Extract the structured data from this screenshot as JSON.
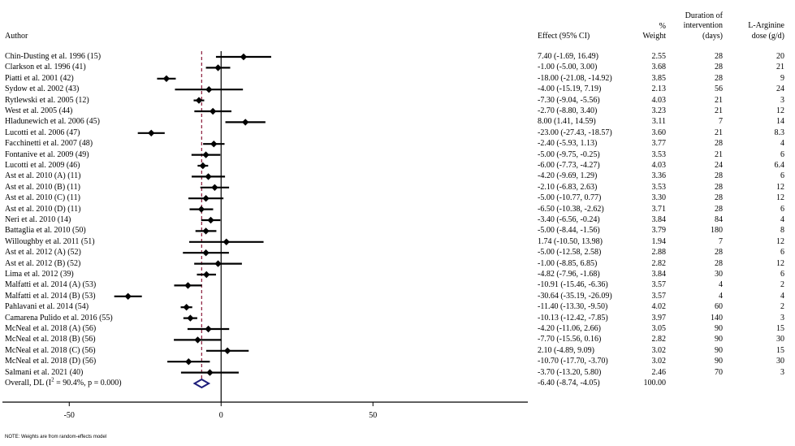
{
  "chart_data": {
    "type": "forest",
    "columns": {
      "author": "Author",
      "effect": "Effect (95% CI)",
      "weight_top": "%",
      "weight_bottom": "Weight",
      "duration_l1": "Duration of",
      "duration_l2": "intervention",
      "duration_l3": "(days)",
      "dose_l1": "L-Arginine",
      "dose_l2": "dose (g/d)"
    },
    "studies": [
      {
        "author": "Chin-Dusting et al. 1996 (15)",
        "effect": 7.4,
        "lower": -1.69,
        "upper": 16.49,
        "ci_text": "7.40 (-1.69, 16.49)",
        "weight": "2.55",
        "duration": "28",
        "dose": "20"
      },
      {
        "author": "Clarkson et al. 1996 (41)",
        "effect": -1.0,
        "lower": -5.0,
        "upper": 3.0,
        "ci_text": "-1.00 (-5.00, 3.00)",
        "weight": "3.68",
        "duration": "28",
        "dose": "21"
      },
      {
        "author": "Piatti et al. 2001 (42)",
        "effect": -18.0,
        "lower": -21.08,
        "upper": -14.92,
        "ci_text": "-18.00 (-21.08, -14.92)",
        "weight": "3.85",
        "duration": "28",
        "dose": "9"
      },
      {
        "author": "Sydow et al. 2002 (43)",
        "effect": -4.0,
        "lower": -15.19,
        "upper": 7.19,
        "ci_text": "-4.00 (-15.19, 7.19)",
        "weight": "2.13",
        "duration": "56",
        "dose": "24"
      },
      {
        "author": "Rytlewski et al. 2005 (12)",
        "effect": -7.3,
        "lower": -9.04,
        "upper": -5.56,
        "ci_text": "-7.30 (-9.04, -5.56)",
        "weight": "4.03",
        "duration": "21",
        "dose": "3"
      },
      {
        "author": "West et al. 2005 (44)",
        "effect": -2.7,
        "lower": -8.8,
        "upper": 3.4,
        "ci_text": "-2.70 (-8.80, 3.40)",
        "weight": "3.23",
        "duration": "21",
        "dose": "12"
      },
      {
        "author": "Hladunewich et al. 2006 (45)",
        "effect": 8.0,
        "lower": 1.41,
        "upper": 14.59,
        "ci_text": "8.00 (1.41, 14.59)",
        "weight": "3.11",
        "duration": "7",
        "dose": "14"
      },
      {
        "author": "Lucotti et al. 2006 (47)",
        "effect": -23.0,
        "lower": -27.43,
        "upper": -18.57,
        "ci_text": "-23.00 (-27.43, -18.57)",
        "weight": "3.60",
        "duration": "21",
        "dose": "8.3"
      },
      {
        "author": "Facchinetti et al. 2007 (48)",
        "effect": -2.4,
        "lower": -5.93,
        "upper": 1.13,
        "ci_text": "-2.40 (-5.93, 1.13)",
        "weight": "3.77",
        "duration": "28",
        "dose": "4"
      },
      {
        "author": "Fontanive et al. 2009 (49)",
        "effect": -5.0,
        "lower": -9.75,
        "upper": -0.25,
        "ci_text": "-5.00 (-9.75, -0.25)",
        "weight": "3.53",
        "duration": "21",
        "dose": "6"
      },
      {
        "author": "Lucotti et al. 2009 (46)",
        "effect": -6.0,
        "lower": -7.73,
        "upper": -4.27,
        "ci_text": "-6.00 (-7.73, -4.27)",
        "weight": "4.03",
        "duration": "24",
        "dose": "6.4"
      },
      {
        "author": "Ast et al. 2010 (A) (11)",
        "effect": -4.2,
        "lower": -9.69,
        "upper": 1.29,
        "ci_text": "-4.20 (-9.69, 1.29)",
        "weight": "3.36",
        "duration": "28",
        "dose": "6"
      },
      {
        "author": "Ast et al. 2010 (B) (11)",
        "effect": -2.1,
        "lower": -6.83,
        "upper": 2.63,
        "ci_text": "-2.10 (-6.83, 2.63)",
        "weight": "3.53",
        "duration": "28",
        "dose": "12"
      },
      {
        "author": "Ast et al. 2010  (C) (11)",
        "effect": -5.0,
        "lower": -10.77,
        "upper": 0.77,
        "ci_text": "-5.00 (-10.77, 0.77)",
        "weight": "3.30",
        "duration": "28",
        "dose": "12"
      },
      {
        "author": "Ast et al. 2010 (D) (11)",
        "effect": -6.5,
        "lower": -10.38,
        "upper": -2.62,
        "ci_text": "-6.50 (-10.38, -2.62)",
        "weight": "3.71",
        "duration": "28",
        "dose": "6"
      },
      {
        "author": "Neri et al. 2010 (14)",
        "effect": -3.4,
        "lower": -6.56,
        "upper": -0.24,
        "ci_text": "-3.40 (-6.56, -0.24)",
        "weight": "3.84",
        "duration": "84",
        "dose": "4"
      },
      {
        "author": "Battaglia et al. 2010 (50)",
        "effect": -5.0,
        "lower": -8.44,
        "upper": -1.56,
        "ci_text": "-5.00 (-8.44, -1.56)",
        "weight": "3.79",
        "duration": "180",
        "dose": "8"
      },
      {
        "author": "Willoughby et al. 2011 (51)",
        "effect": 1.74,
        "lower": -10.5,
        "upper": 13.98,
        "ci_text": "1.74 (-10.50, 13.98)",
        "weight": "1.94",
        "duration": "7",
        "dose": "12"
      },
      {
        "author": "Ast et al. 2012 (A) (52)",
        "effect": -5.0,
        "lower": -12.58,
        "upper": 2.58,
        "ci_text": "-5.00 (-12.58, 2.58)",
        "weight": "2.88",
        "duration": "28",
        "dose": "6"
      },
      {
        "author": "Ast et al. 2012 (B) (52)",
        "effect": -1.0,
        "lower": -8.85,
        "upper": 6.85,
        "ci_text": "-1.00 (-8.85, 6.85)",
        "weight": "2.82",
        "duration": "28",
        "dose": "12"
      },
      {
        "author": "Lima et al. 2012 (39)",
        "effect": -4.82,
        "lower": -7.96,
        "upper": -1.68,
        "ci_text": "-4.82 (-7.96, -1.68)",
        "weight": "3.84",
        "duration": "30",
        "dose": "6"
      },
      {
        "author": "Malfatti et al. 2014 (A) (53)",
        "effect": -10.91,
        "lower": -15.46,
        "upper": -6.36,
        "ci_text": "-10.91 (-15.46, -6.36)",
        "weight": "3.57",
        "duration": "4",
        "dose": "2"
      },
      {
        "author": "Malfatti et al. 2014 (B) (53)",
        "effect": -30.64,
        "lower": -35.19,
        "upper": -26.09,
        "ci_text": "-30.64 (-35.19, -26.09)",
        "weight": "3.57",
        "duration": "4",
        "dose": "4"
      },
      {
        "author": "Pahlavani et al. 2014 (54)",
        "effect": -11.4,
        "lower": -13.3,
        "upper": -9.5,
        "ci_text": "-11.40 (-13.30, -9.50)",
        "weight": "4.02",
        "duration": "60",
        "dose": "2"
      },
      {
        "author": "Camarena Pulido et al. 2016 (55)",
        "effect": -10.13,
        "lower": -12.42,
        "upper": -7.85,
        "ci_text": "-10.13 (-12.42, -7.85)",
        "weight": "3.97",
        "duration": "140",
        "dose": "3"
      },
      {
        "author": "McNeal  et al. 2018 (A) (56)",
        "effect": -4.2,
        "lower": -11.06,
        "upper": 2.66,
        "ci_text": "-4.20 (-11.06, 2.66)",
        "weight": "3.05",
        "duration": "90",
        "dose": "15"
      },
      {
        "author": "McNeal et al. 2018 (B) (56)",
        "effect": -7.7,
        "lower": -15.56,
        "upper": 0.16,
        "ci_text": "-7.70 (-15.56, 0.16)",
        "weight": "2.82",
        "duration": "90",
        "dose": "30"
      },
      {
        "author": "McNeal et al. 2018 (C) (56)",
        "effect": 2.1,
        "lower": -4.89,
        "upper": 9.09,
        "ci_text": "2.10 (-4.89, 9.09)",
        "weight": "3.02",
        "duration": "90",
        "dose": "15"
      },
      {
        "author": "McNeal et al. 2018 (D) (56)",
        "effect": -10.7,
        "lower": -17.7,
        "upper": -3.7,
        "ci_text": "-10.70 (-17.70, -3.70)",
        "weight": "3.02",
        "duration": "90",
        "dose": "30"
      },
      {
        "author": "Salmani et al. 2021 (40)",
        "effect": -3.7,
        "lower": -13.2,
        "upper": 5.8,
        "ci_text": "-3.70 (-13.20, 5.80)",
        "weight": "2.46",
        "duration": "70",
        "dose": "3"
      }
    ],
    "overall": {
      "label_pre": "Overall, DL (I",
      "label_sup": "2",
      "label_post": " = 90.4%, p = 0.000)",
      "effect": -6.4,
      "lower": -8.74,
      "upper": -4.05,
      "ci_text": "-6.40 (-8.74, -4.05)",
      "weight": "100.00"
    },
    "x_ticks": [
      -50,
      0,
      50
    ],
    "x_tick_labels": [
      "-50",
      "0",
      "50"
    ],
    "xlim": [
      -72,
      101
    ],
    "null_line": 0,
    "pooled_line": -6.4,
    "colors": {
      "points": "#000000",
      "pooled_line": "#8b1a3a",
      "diamond": "#1c1c7a",
      "axis": "#000000"
    },
    "note": "NOTE: Weights are from random-effects model"
  }
}
